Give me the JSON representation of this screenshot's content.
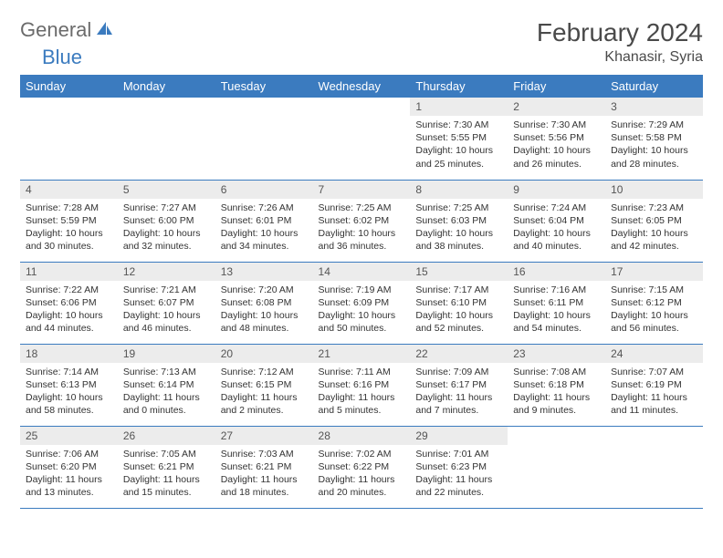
{
  "brand": {
    "name_part1": "General",
    "name_part2": "Blue"
  },
  "title": "February 2024",
  "location": "Khanasir, Syria",
  "colors": {
    "header_bg": "#3b7bbf",
    "header_text": "#ffffff",
    "daynum_bg": "#ececec",
    "text": "#333333",
    "logo_gray": "#6b6b6b",
    "logo_blue": "#3b7bbf",
    "border": "#3b7bbf"
  },
  "weekdays": [
    "Sunday",
    "Monday",
    "Tuesday",
    "Wednesday",
    "Thursday",
    "Friday",
    "Saturday"
  ],
  "weeks": [
    [
      null,
      null,
      null,
      null,
      {
        "n": "1",
        "sr": "Sunrise: 7:30 AM",
        "ss": "Sunset: 5:55 PM",
        "dl": "Daylight: 10 hours and 25 minutes."
      },
      {
        "n": "2",
        "sr": "Sunrise: 7:30 AM",
        "ss": "Sunset: 5:56 PM",
        "dl": "Daylight: 10 hours and 26 minutes."
      },
      {
        "n": "3",
        "sr": "Sunrise: 7:29 AM",
        "ss": "Sunset: 5:58 PM",
        "dl": "Daylight: 10 hours and 28 minutes."
      }
    ],
    [
      {
        "n": "4",
        "sr": "Sunrise: 7:28 AM",
        "ss": "Sunset: 5:59 PM",
        "dl": "Daylight: 10 hours and 30 minutes."
      },
      {
        "n": "5",
        "sr": "Sunrise: 7:27 AM",
        "ss": "Sunset: 6:00 PM",
        "dl": "Daylight: 10 hours and 32 minutes."
      },
      {
        "n": "6",
        "sr": "Sunrise: 7:26 AM",
        "ss": "Sunset: 6:01 PM",
        "dl": "Daylight: 10 hours and 34 minutes."
      },
      {
        "n": "7",
        "sr": "Sunrise: 7:25 AM",
        "ss": "Sunset: 6:02 PM",
        "dl": "Daylight: 10 hours and 36 minutes."
      },
      {
        "n": "8",
        "sr": "Sunrise: 7:25 AM",
        "ss": "Sunset: 6:03 PM",
        "dl": "Daylight: 10 hours and 38 minutes."
      },
      {
        "n": "9",
        "sr": "Sunrise: 7:24 AM",
        "ss": "Sunset: 6:04 PM",
        "dl": "Daylight: 10 hours and 40 minutes."
      },
      {
        "n": "10",
        "sr": "Sunrise: 7:23 AM",
        "ss": "Sunset: 6:05 PM",
        "dl": "Daylight: 10 hours and 42 minutes."
      }
    ],
    [
      {
        "n": "11",
        "sr": "Sunrise: 7:22 AM",
        "ss": "Sunset: 6:06 PM",
        "dl": "Daylight: 10 hours and 44 minutes."
      },
      {
        "n": "12",
        "sr": "Sunrise: 7:21 AM",
        "ss": "Sunset: 6:07 PM",
        "dl": "Daylight: 10 hours and 46 minutes."
      },
      {
        "n": "13",
        "sr": "Sunrise: 7:20 AM",
        "ss": "Sunset: 6:08 PM",
        "dl": "Daylight: 10 hours and 48 minutes."
      },
      {
        "n": "14",
        "sr": "Sunrise: 7:19 AM",
        "ss": "Sunset: 6:09 PM",
        "dl": "Daylight: 10 hours and 50 minutes."
      },
      {
        "n": "15",
        "sr": "Sunrise: 7:17 AM",
        "ss": "Sunset: 6:10 PM",
        "dl": "Daylight: 10 hours and 52 minutes."
      },
      {
        "n": "16",
        "sr": "Sunrise: 7:16 AM",
        "ss": "Sunset: 6:11 PM",
        "dl": "Daylight: 10 hours and 54 minutes."
      },
      {
        "n": "17",
        "sr": "Sunrise: 7:15 AM",
        "ss": "Sunset: 6:12 PM",
        "dl": "Daylight: 10 hours and 56 minutes."
      }
    ],
    [
      {
        "n": "18",
        "sr": "Sunrise: 7:14 AM",
        "ss": "Sunset: 6:13 PM",
        "dl": "Daylight: 10 hours and 58 minutes."
      },
      {
        "n": "19",
        "sr": "Sunrise: 7:13 AM",
        "ss": "Sunset: 6:14 PM",
        "dl": "Daylight: 11 hours and 0 minutes."
      },
      {
        "n": "20",
        "sr": "Sunrise: 7:12 AM",
        "ss": "Sunset: 6:15 PM",
        "dl": "Daylight: 11 hours and 2 minutes."
      },
      {
        "n": "21",
        "sr": "Sunrise: 7:11 AM",
        "ss": "Sunset: 6:16 PM",
        "dl": "Daylight: 11 hours and 5 minutes."
      },
      {
        "n": "22",
        "sr": "Sunrise: 7:09 AM",
        "ss": "Sunset: 6:17 PM",
        "dl": "Daylight: 11 hours and 7 minutes."
      },
      {
        "n": "23",
        "sr": "Sunrise: 7:08 AM",
        "ss": "Sunset: 6:18 PM",
        "dl": "Daylight: 11 hours and 9 minutes."
      },
      {
        "n": "24",
        "sr": "Sunrise: 7:07 AM",
        "ss": "Sunset: 6:19 PM",
        "dl": "Daylight: 11 hours and 11 minutes."
      }
    ],
    [
      {
        "n": "25",
        "sr": "Sunrise: 7:06 AM",
        "ss": "Sunset: 6:20 PM",
        "dl": "Daylight: 11 hours and 13 minutes."
      },
      {
        "n": "26",
        "sr": "Sunrise: 7:05 AM",
        "ss": "Sunset: 6:21 PM",
        "dl": "Daylight: 11 hours and 15 minutes."
      },
      {
        "n": "27",
        "sr": "Sunrise: 7:03 AM",
        "ss": "Sunset: 6:21 PM",
        "dl": "Daylight: 11 hours and 18 minutes."
      },
      {
        "n": "28",
        "sr": "Sunrise: 7:02 AM",
        "ss": "Sunset: 6:22 PM",
        "dl": "Daylight: 11 hours and 20 minutes."
      },
      {
        "n": "29",
        "sr": "Sunrise: 7:01 AM",
        "ss": "Sunset: 6:23 PM",
        "dl": "Daylight: 11 hours and 22 minutes."
      },
      null,
      null
    ]
  ]
}
